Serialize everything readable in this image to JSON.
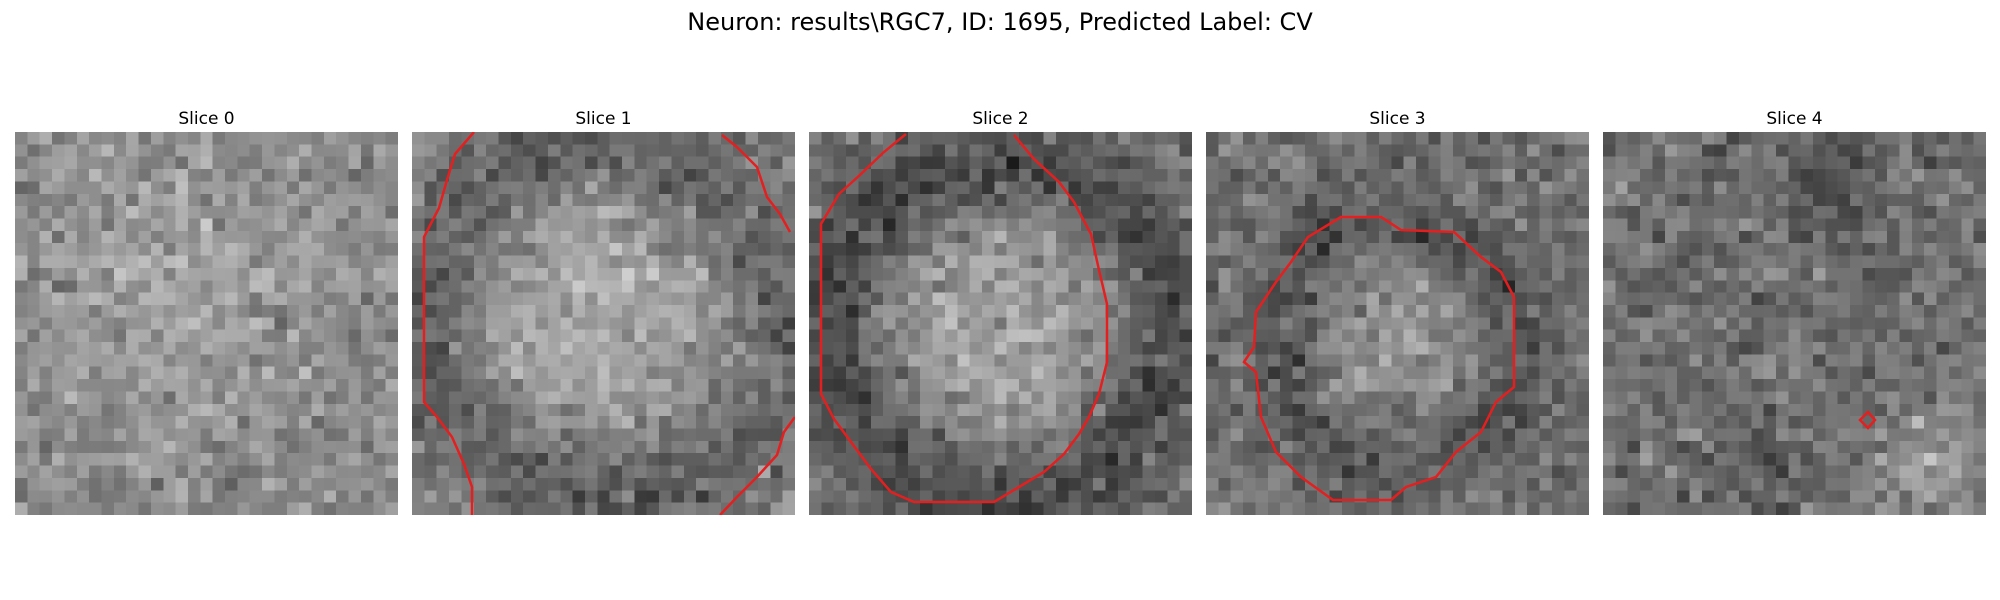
{
  "figure": {
    "title": "Neuron: results\\RGC7, ID: 1695, Predicted Label: CV",
    "mask_color": "#e51f1f"
  },
  "panels": [
    {
      "title": "Slice 0",
      "has_contour": false
    },
    {
      "title": "Slice 1",
      "has_contour": true
    },
    {
      "title": "Slice 2",
      "has_contour": true
    },
    {
      "title": "Slice 3",
      "has_contour": true
    },
    {
      "title": "Slice 4",
      "has_contour": true
    }
  ]
}
